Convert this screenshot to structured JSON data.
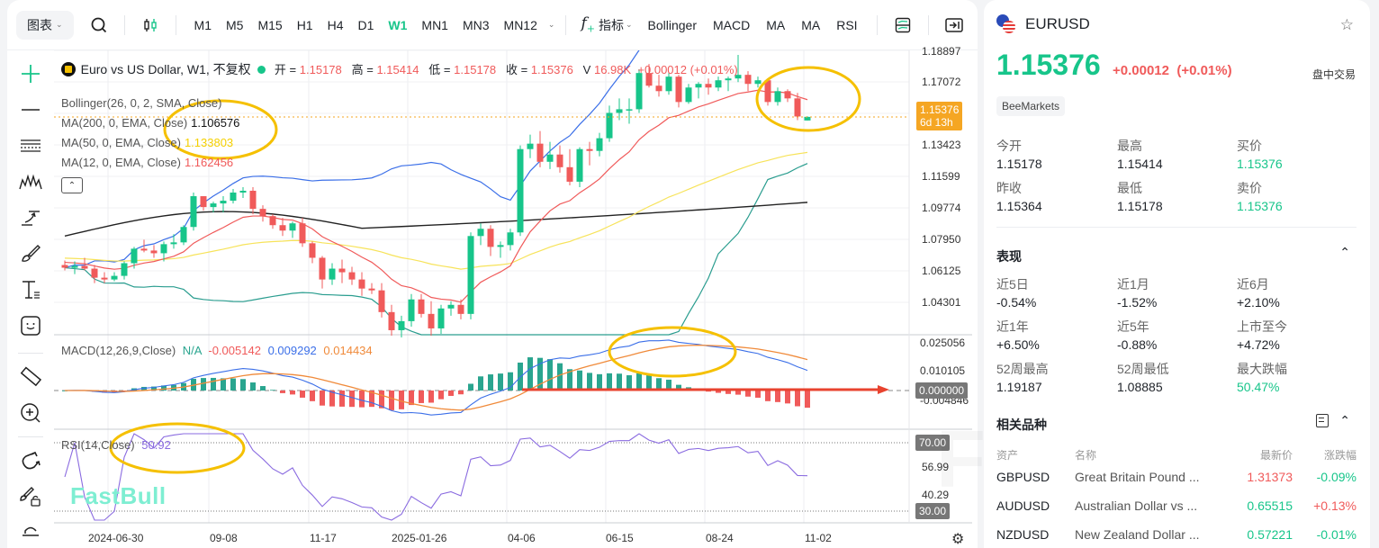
{
  "toolbar": {
    "chart_menu": "图表",
    "timeframes": [
      "M1",
      "M5",
      "M15",
      "H1",
      "H4",
      "D1",
      "W1",
      "MN1",
      "MN3",
      "MN12"
    ],
    "active_timeframe": "W1",
    "indicators_label": "指标",
    "indicator_shortcuts": [
      "Bollinger",
      "MACD",
      "MA",
      "MA",
      "RSI"
    ]
  },
  "chart_header": {
    "symbol_title": "Euro vs US Dollar, W1, 不复权",
    "open_label": "开 =",
    "open": "1.15178",
    "high_label": "高 =",
    "high": "1.15414",
    "low_label": "低 =",
    "low": "1.15178",
    "close_label": "收 =",
    "close": "1.15376",
    "volume_label": "V",
    "volume": "16.98K",
    "change": "+0.00012 (+0.01%)"
  },
  "legend": {
    "bollinger": "Bollinger(26, 0, 2, SMA, Close)",
    "ma200_label": "MA(200, 0, EMA, Close)",
    "ma200_value": "1.106576",
    "ma50_label": "MA(50, 0, EMA, Close)",
    "ma50_value": "1.133803",
    "ma12_label": "MA(12, 0, EMA, Close)",
    "ma12_value": "1.162456",
    "macd_label": "MACD(12,26,9,Close)",
    "macd_hist": "N/A",
    "macd_v1": "-0.005142",
    "macd_v2": "0.009292",
    "macd_v3": "0.014434",
    "rsi_label": "RSI(14,Close)",
    "rsi_value": "50.92"
  },
  "price_axis": [
    "1.18897",
    "1.17072",
    "1.13423",
    "1.11599",
    "1.09774",
    "1.07950",
    "1.06125",
    "1.04301"
  ],
  "current_price_badge": {
    "price": "1.15376",
    "countdown": "6d 13h"
  },
  "macd_axis": [
    "0.025056",
    "0.010105",
    "-0.004846"
  ],
  "macd_zero_badge": "0.000000",
  "rsi_axis": {
    "upper_badge": "70.00",
    "lower_badge": "30.00",
    "ticks": [
      "56.99",
      "40.29"
    ]
  },
  "x_axis": [
    "2024-06-30",
    "09-08",
    "11-17",
    "2025-01-26",
    "04-06",
    "06-15",
    "08-24",
    "11-02"
  ],
  "watermark": "FastBull",
  "colors": {
    "up": "#17c58a",
    "down": "#f05a5a",
    "bb": "#3b6fe8",
    "ma200": "#222222",
    "ma50": "#f7e35a",
    "ma12": "#f05a5a",
    "lower_bb": "#2a9d8f",
    "annotation": "#f5c000",
    "macd_fast": "#3b6fe8",
    "macd_signal": "#f08a3a",
    "rsi": "#8a6be0",
    "price_badge": "#f5a623"
  },
  "chart_data": {
    "type": "candlestick",
    "title": "Euro vs US Dollar, W1",
    "x_ticks": [
      "2024-06-30",
      "09-08",
      "11-17",
      "2025-01-26",
      "04-06",
      "06-15",
      "08-24",
      "11-02"
    ],
    "y_range": [
      1.035,
      1.19
    ],
    "candles": [
      [
        1.072,
        1.0745,
        1.069,
        1.0705
      ],
      [
        1.0705,
        1.074,
        1.067,
        1.0715
      ],
      [
        1.0715,
        1.076,
        1.069,
        1.07
      ],
      [
        1.07,
        1.072,
        1.062,
        1.065
      ],
      [
        1.065,
        1.068,
        1.062,
        1.064
      ],
      [
        1.064,
        1.068,
        1.063,
        1.066
      ],
      [
        1.066,
        1.074,
        1.064,
        1.073
      ],
      [
        1.073,
        1.082,
        1.07,
        1.081
      ],
      [
        1.081,
        1.086,
        1.079,
        1.08
      ],
      [
        1.08,
        1.083,
        1.076,
        1.0785
      ],
      [
        1.0785,
        1.085,
        1.074,
        1.0835
      ],
      [
        1.0835,
        1.089,
        1.081,
        1.0845
      ],
      [
        1.0845,
        1.094,
        1.083,
        1.093
      ],
      [
        1.093,
        1.112,
        1.091,
        1.11
      ],
      [
        1.11,
        1.11,
        1.102,
        1.104
      ],
      [
        1.104,
        1.107,
        1.101,
        1.106
      ],
      [
        1.106,
        1.11,
        1.101,
        1.1075
      ],
      [
        1.1075,
        1.114,
        1.106,
        1.112
      ],
      [
        1.112,
        1.115,
        1.109,
        1.113
      ],
      [
        1.113,
        1.115,
        1.1,
        1.103
      ],
      [
        1.103,
        1.105,
        1.096,
        1.099
      ],
      [
        1.099,
        1.1,
        1.092,
        1.094
      ],
      [
        1.094,
        1.098,
        1.088,
        1.091
      ],
      [
        1.091,
        1.096,
        1.087,
        1.095
      ],
      [
        1.095,
        1.098,
        1.082,
        1.084
      ],
      [
        1.084,
        1.085,
        1.073,
        1.076
      ],
      [
        1.076,
        1.077,
        1.059,
        1.064
      ],
      [
        1.064,
        1.073,
        1.061,
        1.07
      ],
      [
        1.07,
        1.075,
        1.062,
        1.068
      ],
      [
        1.068,
        1.071,
        1.061,
        1.064
      ],
      [
        1.064,
        1.068,
        1.055,
        1.059
      ],
      [
        1.059,
        1.062,
        1.056,
        1.058
      ],
      [
        1.058,
        1.062,
        1.043,
        1.046
      ],
      [
        1.046,
        1.05,
        1.033,
        1.036
      ],
      [
        1.036,
        1.044,
        1.032,
        1.041
      ],
      [
        1.041,
        1.056,
        1.038,
        1.053
      ],
      [
        1.053,
        1.056,
        1.043,
        1.045
      ],
      [
        1.045,
        1.052,
        1.033,
        1.037
      ],
      [
        1.037,
        1.05,
        1.034,
        1.048
      ],
      [
        1.048,
        1.052,
        1.044,
        1.05
      ],
      [
        1.05,
        1.053,
        1.042,
        1.045
      ],
      [
        1.045,
        1.09,
        1.042,
        1.088
      ],
      [
        1.088,
        1.095,
        1.083,
        1.092
      ],
      [
        1.092,
        1.094,
        1.077,
        1.082
      ],
      [
        1.082,
        1.085,
        1.076,
        1.083
      ],
      [
        1.083,
        1.092,
        1.08,
        1.09
      ],
      [
        1.09,
        1.138,
        1.088,
        1.136
      ],
      [
        1.136,
        1.144,
        1.131,
        1.139
      ],
      [
        1.139,
        1.146,
        1.126,
        1.129
      ],
      [
        1.129,
        1.14,
        1.125,
        1.133
      ],
      [
        1.133,
        1.138,
        1.123,
        1.126
      ],
      [
        1.126,
        1.136,
        1.116,
        1.118
      ],
      [
        1.118,
        1.137,
        1.115,
        1.136
      ],
      [
        1.136,
        1.14,
        1.127,
        1.135
      ],
      [
        1.135,
        1.145,
        1.132,
        1.142
      ],
      [
        1.142,
        1.16,
        1.14,
        1.156
      ],
      [
        1.156,
        1.164,
        1.152,
        1.158
      ],
      [
        1.158,
        1.164,
        1.15,
        1.158
      ],
      [
        1.158,
        1.18,
        1.156,
        1.178
      ],
      [
        1.178,
        1.183,
        1.17,
        1.171
      ],
      [
        1.171,
        1.177,
        1.165,
        1.168
      ],
      [
        1.168,
        1.178,
        1.166,
        1.176
      ],
      [
        1.176,
        1.177,
        1.159,
        1.162
      ],
      [
        1.162,
        1.172,
        1.161,
        1.17
      ],
      [
        1.17,
        1.173,
        1.164,
        1.172
      ],
      [
        1.172,
        1.175,
        1.166,
        1.17
      ],
      [
        1.17,
        1.176,
        1.168,
        1.174
      ],
      [
        1.174,
        1.176,
        1.168,
        1.175
      ],
      [
        1.175,
        1.188,
        1.173,
        1.177
      ],
      [
        1.177,
        1.179,
        1.168,
        1.172
      ],
      [
        1.172,
        1.176,
        1.17,
        1.174
      ],
      [
        1.174,
        1.174,
        1.16,
        1.162
      ],
      [
        1.162,
        1.17,
        1.16,
        1.168
      ],
      [
        1.168,
        1.169,
        1.162,
        1.164
      ],
      [
        1.164,
        1.167,
        1.152,
        1.154
      ],
      [
        1.1518,
        1.1541,
        1.1518,
        1.1538
      ]
    ],
    "indicators": {
      "macd_last": {
        "hist": "N/A",
        "macd": -0.005142,
        "signal": 0.009292,
        "third": 0.014434
      },
      "rsi_last": 50.92,
      "ma200_last": 1.106576,
      "ma50_last": 1.133803,
      "ma12_last": 1.162456
    },
    "rsi_levels": [
      70,
      30
    ]
  },
  "panel": {
    "symbol": "EURUSD",
    "price": "1.15376",
    "change": "+0.00012",
    "change_pct": "(+0.01%)",
    "session": "盘中交易",
    "broker": "BeeMarkets",
    "quote": [
      {
        "label": "今开",
        "value": "1.15178",
        "color": ""
      },
      {
        "label": "最高",
        "value": "1.15414",
        "color": ""
      },
      {
        "label": "买价",
        "value": "1.15376",
        "color": "green"
      },
      {
        "label": "昨收",
        "value": "1.15364",
        "color": ""
      },
      {
        "label": "最低",
        "value": "1.15178",
        "color": ""
      },
      {
        "label": "卖价",
        "value": "1.15376",
        "color": "green"
      }
    ],
    "performance_title": "表现",
    "performance": [
      {
        "label": "近5日",
        "value": "-0.54%",
        "color": ""
      },
      {
        "label": "近1月",
        "value": "-1.52%",
        "color": ""
      },
      {
        "label": "近6月",
        "value": "+2.10%",
        "color": ""
      },
      {
        "label": "近1年",
        "value": "+6.50%",
        "color": ""
      },
      {
        "label": "近5年",
        "value": "-0.88%",
        "color": ""
      },
      {
        "label": "上市至今",
        "value": "+4.72%",
        "color": ""
      },
      {
        "label": "52周最高",
        "value": "1.19187",
        "color": ""
      },
      {
        "label": "52周最低",
        "value": "1.08885",
        "color": ""
      },
      {
        "label": "最大跌幅",
        "value": "50.47%",
        "color": "green"
      }
    ],
    "related_title": "相关品种",
    "related_headers": [
      "资产",
      "名称",
      "最新价",
      "涨跌幅"
    ],
    "related": [
      {
        "asset": "GBPUSD",
        "name": "Great Britain Pound ...",
        "price": "1.31373",
        "price_color": "red",
        "change": "-0.09%",
        "change_color": "green"
      },
      {
        "asset": "AUDUSD",
        "name": "Australian Dollar vs ...",
        "price": "0.65515",
        "price_color": "green",
        "change": "+0.13%",
        "change_color": "red"
      },
      {
        "asset": "NZDUSD",
        "name": "New Zealand Dollar ...",
        "price": "0.57221",
        "price_color": "green",
        "change": "-0.01%",
        "change_color": "green"
      }
    ]
  }
}
